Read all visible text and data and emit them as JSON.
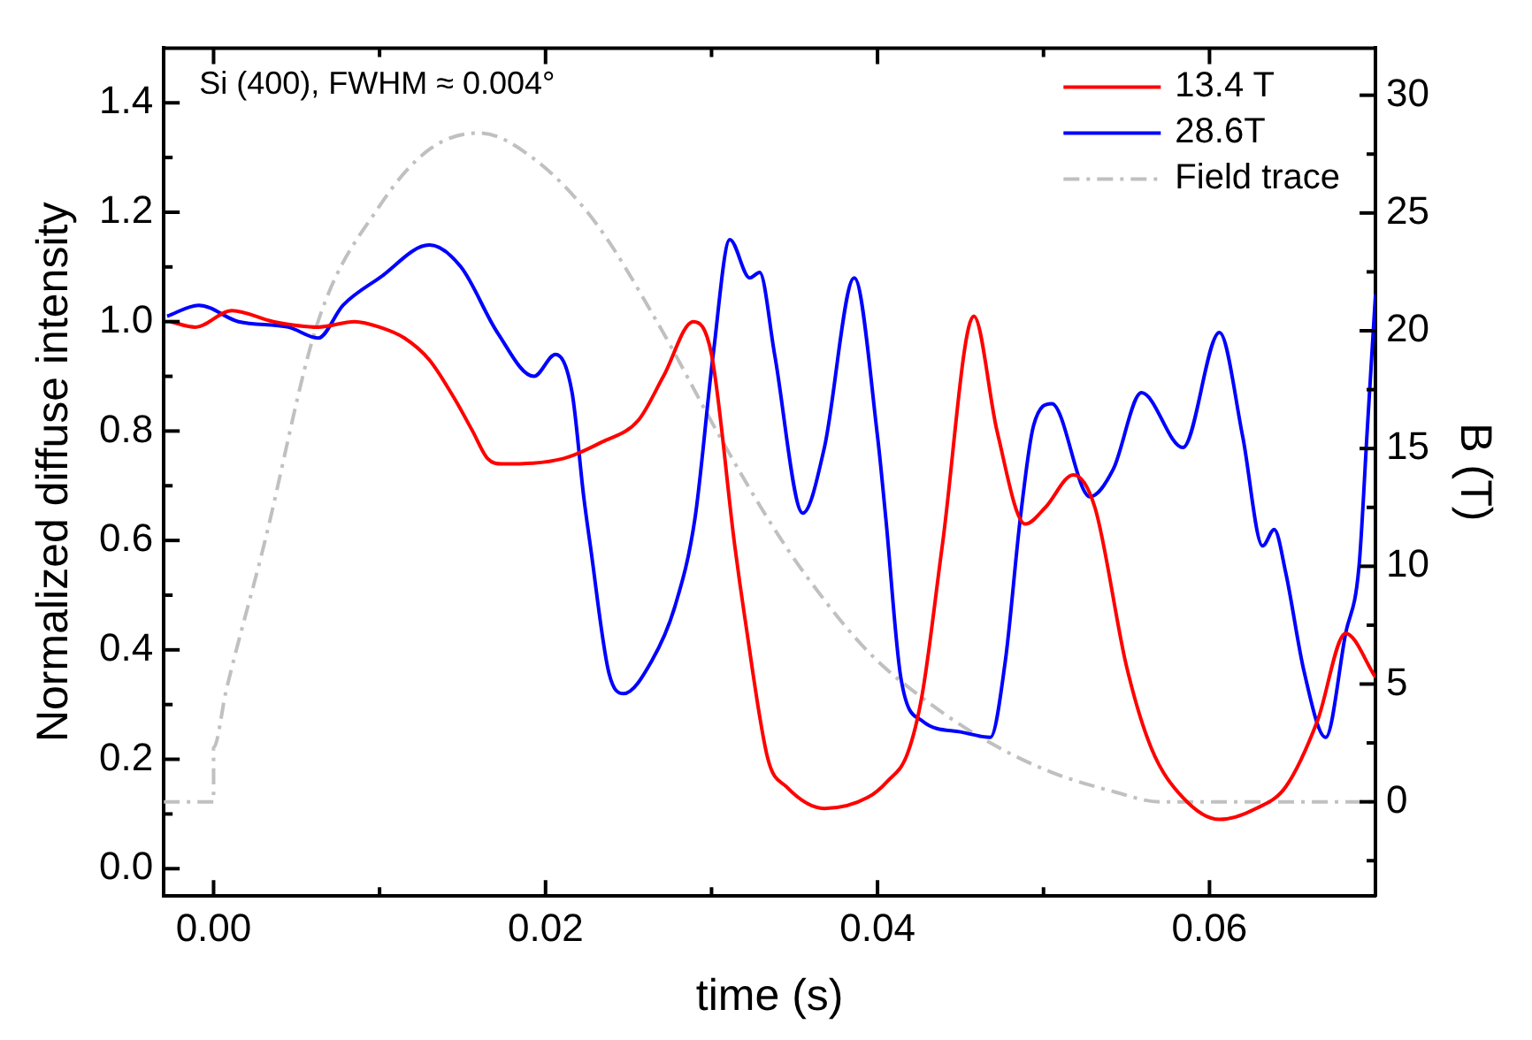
{
  "chart_data": {
    "type": "line",
    "xlabel": "time (s)",
    "ylabel": "Normalized diffuse intensity",
    "y2label": "B (T)",
    "annotations": [
      "Si (400), FWHM ≈ 0.004°"
    ],
    "xlim": [
      -0.003,
      0.07
    ],
    "xticks": [
      {
        "value": 0,
        "label": "0.00"
      },
      {
        "value": 0.01,
        "label": null
      },
      {
        "value": 0.02,
        "label": "0.02"
      },
      {
        "value": 0.03,
        "label": null
      },
      {
        "value": 0.04,
        "label": "0.04"
      },
      {
        "value": 0.05,
        "label": null
      },
      {
        "value": 0.06,
        "label": "0.06"
      }
    ],
    "ylim": [
      -0.05,
      1.5
    ],
    "yticks": [
      {
        "value": 0,
        "label": "0.0"
      },
      {
        "value": 0.1,
        "label": null
      },
      {
        "value": 0.2,
        "label": "0.2"
      },
      {
        "value": 0.3,
        "label": null
      },
      {
        "value": 0.4,
        "label": "0.4"
      },
      {
        "value": 0.5,
        "label": null
      },
      {
        "value": 0.6,
        "label": "0.6"
      },
      {
        "value": 0.7,
        "label": null
      },
      {
        "value": 0.8,
        "label": "0.8"
      },
      {
        "value": 0.9,
        "label": null
      },
      {
        "value": 1.0,
        "label": "1.0"
      },
      {
        "value": 1.1,
        "label": null
      },
      {
        "value": 1.2,
        "label": "1.2"
      },
      {
        "value": 1.3,
        "label": null
      },
      {
        "value": 1.4,
        "label": "1.4"
      }
    ],
    "y2lim": [
      -4,
      32
    ],
    "y2ticks": [
      {
        "value": -2.5,
        "label": null
      },
      0,
      {
        "value": 2.5,
        "label": null
      },
      5,
      {
        "value": 7.5,
        "label": null
      },
      10,
      {
        "value": 12.5,
        "label": null
      },
      15,
      {
        "value": 17.5,
        "label": null
      },
      20,
      {
        "value": 22.5,
        "label": null
      },
      25,
      {
        "value": 27.5,
        "label": null
      },
      30
    ],
    "legend": "top right",
    "grid": false,
    "marker": "none",
    "series": [
      {
        "name": "13.4 T",
        "color": "#ff0000",
        "line_style": "solid",
        "x": [
          -0.0026,
          -0.0011,
          0.0011,
          0.0036,
          0.0063,
          0.0085,
          0.01,
          0.0115,
          0.013,
          0.0145,
          0.0156,
          0.0165,
          0.0174,
          0.0211,
          0.0234,
          0.0256,
          0.0271,
          0.0289,
          0.03,
          0.0314,
          0.032,
          0.0334,
          0.0345,
          0.0368,
          0.0394,
          0.0406,
          0.0418,
          0.0427,
          0.0439,
          0.0458,
          0.0472,
          0.0489,
          0.0501,
          0.0518,
          0.0531,
          0.055,
          0.0565,
          0.0584,
          0.0606,
          0.0628,
          0.0646,
          0.0665,
          0.0682,
          0.07
        ],
        "values": [
          1.0,
          0.99,
          1.02,
          1.0,
          0.99,
          1.0,
          0.99,
          0.97,
          0.93,
          0.86,
          0.8,
          0.75,
          0.74,
          0.75,
          0.78,
          0.82,
          0.9,
          1.0,
          0.94,
          0.59,
          0.46,
          0.2,
          0.15,
          0.11,
          0.13,
          0.16,
          0.21,
          0.32,
          0.59,
          1.01,
          0.8,
          0.63,
          0.66,
          0.72,
          0.66,
          0.37,
          0.22,
          0.13,
          0.09,
          0.11,
          0.15,
          0.27,
          0.43,
          0.35
        ]
      },
      {
        "name": "28.6T",
        "color": "#0000ff",
        "line_style": "solid",
        "x": [
          -0.0028,
          -0.0009,
          0.0015,
          0.0045,
          0.0063,
          0.0078,
          0.01,
          0.013,
          0.0149,
          0.0171,
          0.0193,
          0.0206,
          0.0216,
          0.0223,
          0.0227,
          0.0238,
          0.0247,
          0.0264,
          0.0278,
          0.029,
          0.0301,
          0.0311,
          0.0323,
          0.0329,
          0.0338,
          0.0355,
          0.0368,
          0.0386,
          0.04,
          0.0405,
          0.0414,
          0.0427,
          0.045,
          0.0468,
          0.0477,
          0.0486,
          0.0494,
          0.0505,
          0.0528,
          0.0542,
          0.0559,
          0.0584,
          0.0606,
          0.062,
          0.0632,
          0.0639,
          0.0646,
          0.0657,
          0.067,
          0.0682,
          0.069,
          0.0695,
          0.07
        ],
        "values": [
          1.01,
          1.03,
          1.0,
          0.99,
          0.97,
          1.03,
          1.08,
          1.14,
          1.1,
          0.98,
          0.9,
          0.94,
          0.87,
          0.68,
          0.59,
          0.36,
          0.32,
          0.38,
          0.48,
          0.64,
          0.94,
          1.15,
          1.08,
          1.09,
          0.94,
          0.65,
          0.77,
          1.08,
          0.79,
          0.64,
          0.35,
          0.27,
          0.25,
          0.24,
          0.38,
          0.64,
          0.81,
          0.85,
          0.68,
          0.73,
          0.87,
          0.77,
          0.98,
          0.79,
          0.59,
          0.62,
          0.54,
          0.36,
          0.24,
          0.43,
          0.55,
          0.8,
          1.05
        ]
      },
      {
        "name": "Field trace",
        "color": "#c0c0c0",
        "line_style": "dashed",
        "axis": "y2",
        "x": [
          -0.003,
          0.0,
          0.0,
          0.00075,
          0.003,
          0.0063,
          0.01,
          0.013,
          0.016,
          0.0193,
          0.023,
          0.0267,
          0.0305,
          0.0335,
          0.0357,
          0.0394,
          0.0431,
          0.0468,
          0.0505,
          0.0542,
          0.057,
          0.07
        ],
        "values": [
          0,
          0,
          2.3,
          4.7,
          10.8,
          20.4,
          25.3,
          27.7,
          28.4,
          27.3,
          24.6,
          20.4,
          15.5,
          11.9,
          9.6,
          6.4,
          4.2,
          2.5,
          1.25,
          0.44,
          0,
          0
        ]
      }
    ]
  }
}
